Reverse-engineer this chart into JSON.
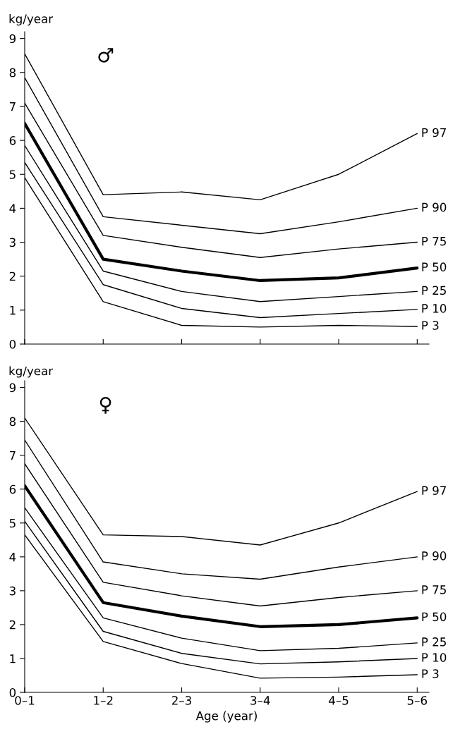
{
  "chart_data": [
    {
      "type": "line",
      "ylabel": "kg/year",
      "annotations": [
        "♂"
      ],
      "categories": [
        null,
        null,
        null,
        null,
        null,
        null
      ],
      "ylim": [
        0,
        9.2
      ],
      "yticks": [
        0,
        1,
        2,
        3,
        4,
        5,
        6,
        7,
        8,
        9
      ],
      "tick_labels": "y",
      "grid": false,
      "legend": false,
      "marker": "none",
      "line_style": "solid",
      "series": [
        {
          "name": "P 97",
          "color": "#000000",
          "values": [
            8.55,
            4.4,
            4.48,
            4.25,
            5.0,
            6.2
          ]
        },
        {
          "name": "P 90",
          "color": "#000000",
          "values": [
            7.85,
            3.75,
            3.5,
            3.25,
            3.6,
            4.0
          ]
        },
        {
          "name": "P 75",
          "color": "#000000",
          "values": [
            7.1,
            3.2,
            2.85,
            2.55,
            2.8,
            3.0
          ]
        },
        {
          "name": "P 50",
          "color": "#000000",
          "values": [
            6.5,
            2.5,
            2.15,
            1.87,
            1.95,
            2.24
          ]
        },
        {
          "name": "P 25",
          "color": "#000000",
          "values": [
            5.85,
            2.15,
            1.55,
            1.25,
            1.4,
            1.55
          ]
        },
        {
          "name": "P 10",
          "color": "#000000",
          "values": [
            5.35,
            1.75,
            1.05,
            0.78,
            0.9,
            1.02
          ]
        },
        {
          "name": "P 3",
          "color": "#000000",
          "values": [
            4.9,
            1.25,
            0.55,
            0.5,
            0.55,
            0.52
          ]
        }
      ]
    },
    {
      "type": "line",
      "ylabel": "kg/year",
      "xlabel": "Age (year)",
      "annotations": [
        "♀"
      ],
      "categories": [
        "0–1",
        "1–2",
        "2–3",
        "3–4",
        "4–5",
        "5–6"
      ],
      "ylim": [
        0,
        9.2
      ],
      "yticks": [
        0,
        1,
        2,
        3,
        4,
        5,
        6,
        7,
        8,
        9
      ],
      "grid": false,
      "legend": false,
      "marker": "none",
      "line_style": "solid",
      "series": [
        {
          "name": "P 97",
          "color": "#000000",
          "values": [
            8.1,
            4.65,
            4.6,
            4.35,
            5.0,
            5.93
          ]
        },
        {
          "name": "P 90",
          "color": "#000000",
          "values": [
            7.45,
            3.85,
            3.5,
            3.34,
            3.7,
            4.0
          ]
        },
        {
          "name": "P 75",
          "color": "#000000",
          "values": [
            6.75,
            3.25,
            2.85,
            2.55,
            2.8,
            3.0
          ]
        },
        {
          "name": "P 50",
          "color": "#000000",
          "values": [
            6.1,
            2.65,
            2.25,
            1.94,
            2.0,
            2.2
          ]
        },
        {
          "name": "P 25",
          "color": "#000000",
          "values": [
            5.45,
            2.2,
            1.6,
            1.23,
            1.3,
            1.46
          ]
        },
        {
          "name": "P 10",
          "color": "#000000",
          "values": [
            5.05,
            1.8,
            1.15,
            0.84,
            0.9,
            1.0
          ]
        },
        {
          "name": "P 3",
          "color": "#000000",
          "values": [
            4.65,
            1.5,
            0.85,
            0.42,
            0.45,
            0.52
          ]
        }
      ]
    }
  ]
}
